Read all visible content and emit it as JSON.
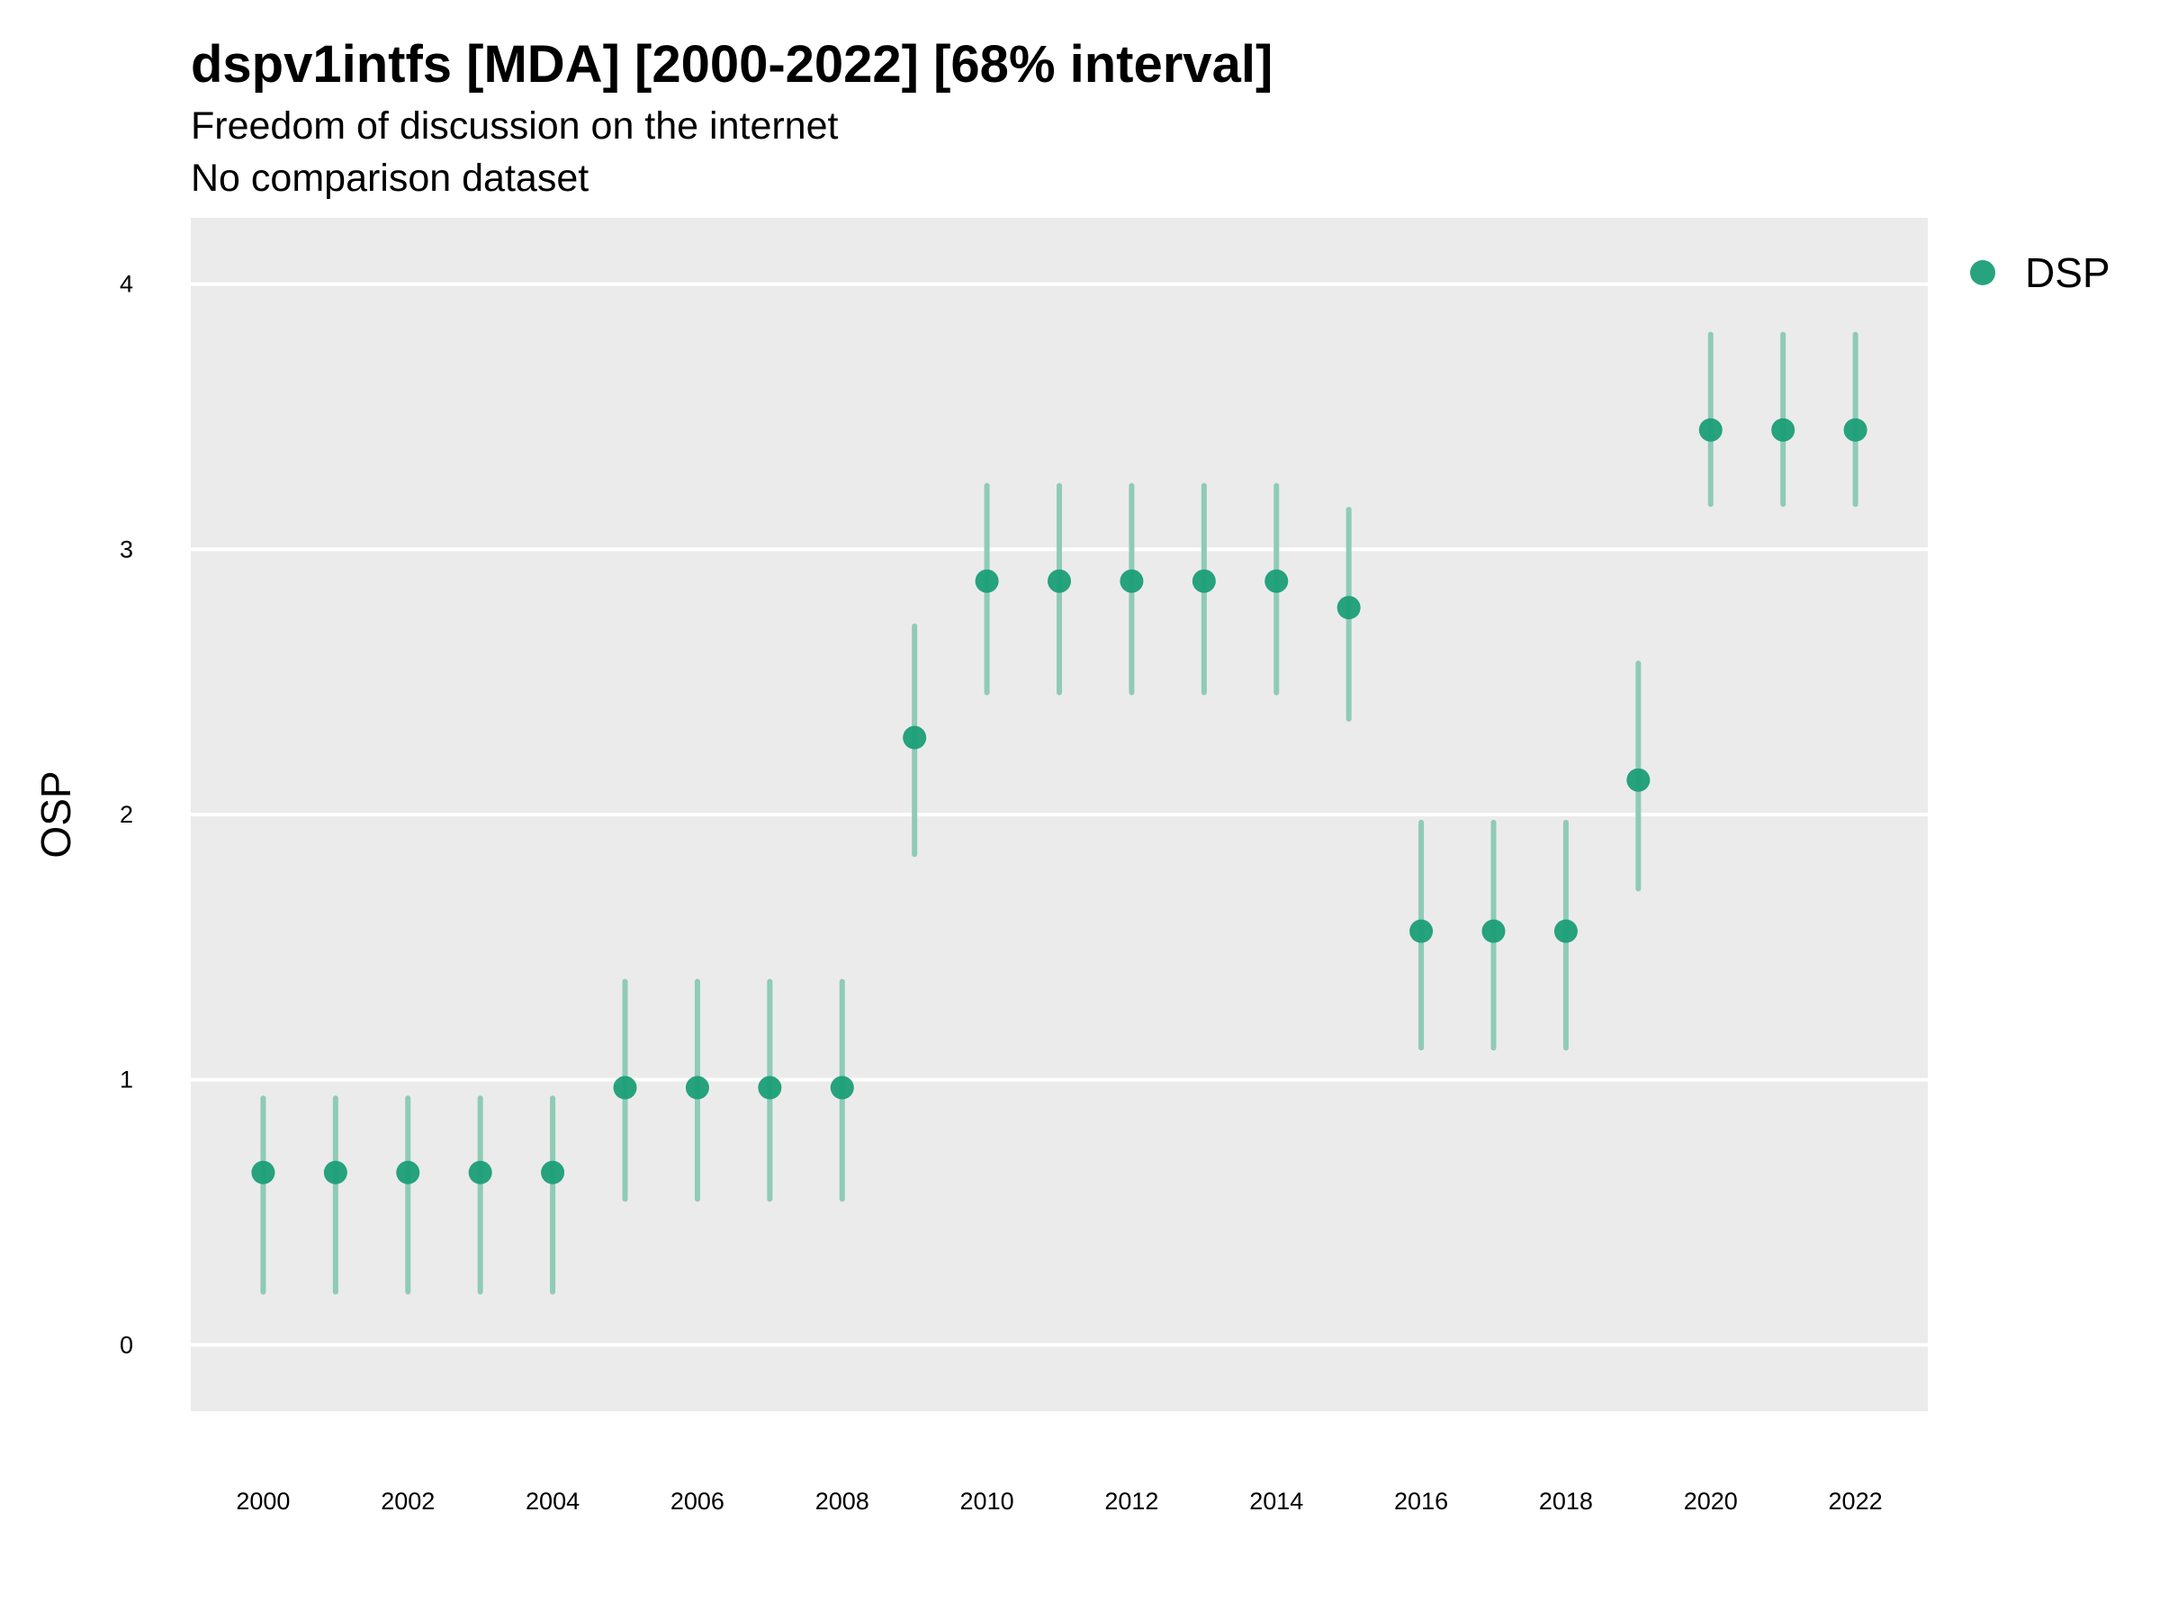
{
  "chart_data": {
    "type": "scatter",
    "title": "dspv1intfs [MDA] [2000-2022] [68% interval]",
    "subtitle": "Freedom of discussion on the internet",
    "caption": "No comparison dataset",
    "xlabel": "",
    "ylabel": "OSP",
    "xlim": [
      1999,
      2023
    ],
    "ylim": [
      -0.25,
      4.25
    ],
    "yticks": [
      0,
      1,
      2,
      3,
      4
    ],
    "xticks": [
      2000,
      2002,
      2004,
      2006,
      2008,
      2010,
      2012,
      2014,
      2016,
      2018,
      2020,
      2022
    ],
    "grid": "horizontal",
    "legend_position": "top-right",
    "colors": {
      "point": "#1b9e77",
      "interval": "#8fcbb6",
      "panel": "#ebebeb",
      "grid": "#ffffff"
    },
    "series": [
      {
        "name": "DSP",
        "x": [
          2000,
          2001,
          2002,
          2003,
          2004,
          2005,
          2006,
          2007,
          2008,
          2009,
          2010,
          2011,
          2012,
          2013,
          2014,
          2015,
          2016,
          2017,
          2018,
          2019,
          2020,
          2021,
          2022
        ],
        "y": [
          0.65,
          0.65,
          0.65,
          0.65,
          0.65,
          0.97,
          0.97,
          0.97,
          0.97,
          2.29,
          2.88,
          2.88,
          2.88,
          2.88,
          2.88,
          2.78,
          1.56,
          1.56,
          1.56,
          2.13,
          3.45,
          3.45,
          3.45
        ],
        "lower": [
          0.2,
          0.2,
          0.2,
          0.2,
          0.2,
          0.55,
          0.55,
          0.55,
          0.55,
          1.85,
          2.46,
          2.46,
          2.46,
          2.46,
          2.46,
          2.36,
          1.12,
          1.12,
          1.12,
          1.72,
          3.17,
          3.17,
          3.17
        ],
        "upper": [
          0.93,
          0.93,
          0.93,
          0.93,
          0.93,
          1.37,
          1.37,
          1.37,
          1.37,
          2.71,
          3.24,
          3.24,
          3.24,
          3.24,
          3.24,
          3.15,
          1.97,
          1.97,
          1.97,
          2.57,
          3.81,
          3.81,
          3.81
        ]
      }
    ]
  }
}
